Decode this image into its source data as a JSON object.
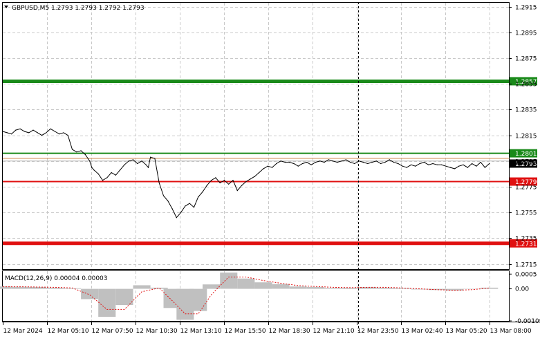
{
  "header": {
    "symbol_label": "GBPUSD,M5  1.2793 1.2793 1.2792 1.2793",
    "macd_label": "MACD(12,26,9) 0.00004 0.00003"
  },
  "colors": {
    "price_line": "#000000",
    "grid": "#c8c8c8",
    "green_level": "#1a8a1a",
    "red_level": "#e01010",
    "current_price_box": "#000000",
    "macd_histogram": "#c0c0c0",
    "macd_signal": "#e01010"
  },
  "chart_data": [
    {
      "type": "line",
      "title": "GBPUSD,M5",
      "y_ticks": [
        "1.2915",
        "1.2895",
        "1.2875",
        "1.2855",
        "1.2835",
        "1.2815",
        "1.2795",
        "1.2775",
        "1.2755",
        "1.2735",
        "1.2715"
      ],
      "x_ticks": [
        "12 Mar 2024",
        "12 Mar 05:10",
        "12 Mar 07:50",
        "12 Mar 10:30",
        "12 Mar 13:10",
        "12 Mar 15:50",
        "12 Mar 18:30",
        "12 Mar 21:10",
        "12 Mar 23:50",
        "13 Mar 02:40",
        "13 Mar 05:20",
        "13 Mar 08:00"
      ],
      "ylim": [
        1.2711,
        1.2918
      ],
      "grid": true,
      "levels": [
        {
          "label": "1.2857",
          "value": 1.2857,
          "color": "green",
          "thickness": "thick"
        },
        {
          "label": "1.2801",
          "value": 1.2801,
          "color": "green",
          "thickness": "medium"
        },
        {
          "label": "1.2779",
          "value": 1.2779,
          "color": "red",
          "thickness": "medium"
        },
        {
          "label": "1.2731",
          "value": 1.2731,
          "color": "red",
          "thickness": "thick"
        }
      ],
      "current_price": {
        "label": "1.2793",
        "value": 1.2793
      },
      "series": [
        {
          "x": [
            0,
            2,
            4,
            6,
            8,
            10,
            12,
            14,
            16,
            18,
            19,
            20,
            22,
            24,
            26,
            28,
            30,
            32,
            34,
            36,
            38,
            40,
            41,
            42,
            44,
            46,
            48,
            50,
            52,
            54,
            56,
            58,
            60,
            62,
            64,
            66,
            67,
            68,
            70,
            72,
            74,
            76,
            78,
            80,
            82,
            84,
            86,
            88,
            90,
            92,
            94,
            96,
            98,
            100,
            102,
            104,
            106,
            108,
            110,
            112,
            114,
            116,
            118,
            120,
            122,
            124,
            126,
            128,
            130,
            132,
            134,
            136,
            138,
            140,
            142,
            144,
            146,
            148,
            150,
            152,
            154,
            156,
            158,
            160,
            162,
            164,
            166,
            168,
            170,
            172,
            174,
            176,
            178,
            180,
            182,
            184,
            186,
            188,
            190,
            192,
            194,
            196,
            198,
            200,
            202,
            204,
            206,
            208,
            210,
            212,
            214,
            216,
            218,
            220,
            222,
            224
          ],
          "values": [
            1.2818,
            1.2817,
            1.2816,
            1.2819,
            1.282,
            1.2818,
            1.2817,
            1.2819,
            1.2817,
            1.2815,
            1.2816,
            1.2817,
            1.282,
            1.2818,
            1.2816,
            1.2817,
            1.2815,
            1.2804,
            1.2802,
            1.2803,
            1.28,
            1.2795,
            1.279,
            1.2788,
            1.2785,
            1.278,
            1.2782,
            1.2786,
            1.2784,
            1.2788,
            1.2792,
            1.2795,
            1.2796,
            1.2793,
            1.2795,
            1.2792,
            1.279,
            1.2798,
            1.2797,
            1.2778,
            1.2768,
            1.2764,
            1.2758,
            1.2751,
            1.2755,
            1.276,
            1.2762,
            1.2759,
            1.2767,
            1.2771,
            1.2776,
            1.278,
            1.2782,
            1.2778,
            1.278,
            1.2777,
            1.278,
            1.2772,
            1.2776,
            1.2779,
            1.2781,
            1.2783,
            1.2786,
            1.2789,
            1.2791,
            1.279,
            1.2793,
            1.2795,
            1.2794,
            1.2794,
            1.2793,
            1.2791,
            1.2793,
            1.2794,
            1.2792,
            1.2794,
            1.2795,
            1.2794,
            1.2796,
            1.2795,
            1.2794,
            1.2795,
            1.2796,
            1.2794,
            1.2793,
            1.2795,
            1.2794,
            1.2793,
            1.2794,
            1.2795,
            1.2793,
            1.2794,
            1.2796,
            1.2794,
            1.2793,
            1.2791,
            1.279,
            1.2792,
            1.2791,
            1.2793,
            1.2794,
            1.2792,
            1.2793,
            1.2792,
            1.2792,
            1.2791,
            1.279,
            1.2789,
            1.2791,
            1.2792,
            1.279,
            1.2793,
            1.2791,
            1.2794,
            1.279,
            1.2793
          ]
        }
      ]
    },
    {
      "type": "bar",
      "title": "MACD(12,26,9)",
      "y_ticks": [
        "0.0005",
        "0.00",
        "-0.00109"
      ],
      "ylim": [
        -0.00109,
        0.0006
      ],
      "series": [
        {
          "name": "histogram",
          "x": [
            0,
            8,
            16,
            24,
            32,
            40,
            48,
            56,
            64,
            72,
            78,
            84,
            90,
            96,
            104,
            112,
            120,
            128,
            136,
            144,
            152,
            160,
            168,
            176,
            184,
            192,
            200,
            208,
            216,
            224
          ],
          "values": [
            8e-05,
            7e-05,
            6e-05,
            4e-05,
            2e-05,
            -0.00035,
            -0.00095,
            -0.00055,
            0.00012,
            4e-05,
            -0.00065,
            -0.00105,
            -0.00075,
            0.00015,
            0.00055,
            0.00035,
            0.00022,
            0.00016,
            8e-05,
            6e-05,
            3e-05,
            4e-05,
            6e-05,
            4e-05,
            3e-05,
            -2e-05,
            -4e-05,
            -6e-05,
            -1e-05,
            4e-05
          ]
        },
        {
          "name": "signal",
          "x": [
            0,
            8,
            16,
            24,
            32,
            40,
            48,
            56,
            64,
            72,
            78,
            84,
            90,
            96,
            104,
            112,
            120,
            128,
            136,
            144,
            152,
            160,
            168,
            176,
            184,
            192,
            200,
            208,
            216,
            224
          ],
          "values": [
            7e-05,
            7e-05,
            6e-05,
            5e-05,
            3e-05,
            -0.0002,
            -0.0007,
            -0.0007,
            -0.0001,
            3e-05,
            -0.0004,
            -0.00085,
            -0.00085,
            -0.0002,
            0.0004,
            0.0004,
            0.00028,
            0.00019,
            0.00011,
            8e-05,
            5e-05,
            4e-05,
            5e-05,
            5e-05,
            3e-05,
            0.0,
            -3e-05,
            -5e-05,
            -3e-05,
            3e-05
          ]
        }
      ]
    }
  ]
}
